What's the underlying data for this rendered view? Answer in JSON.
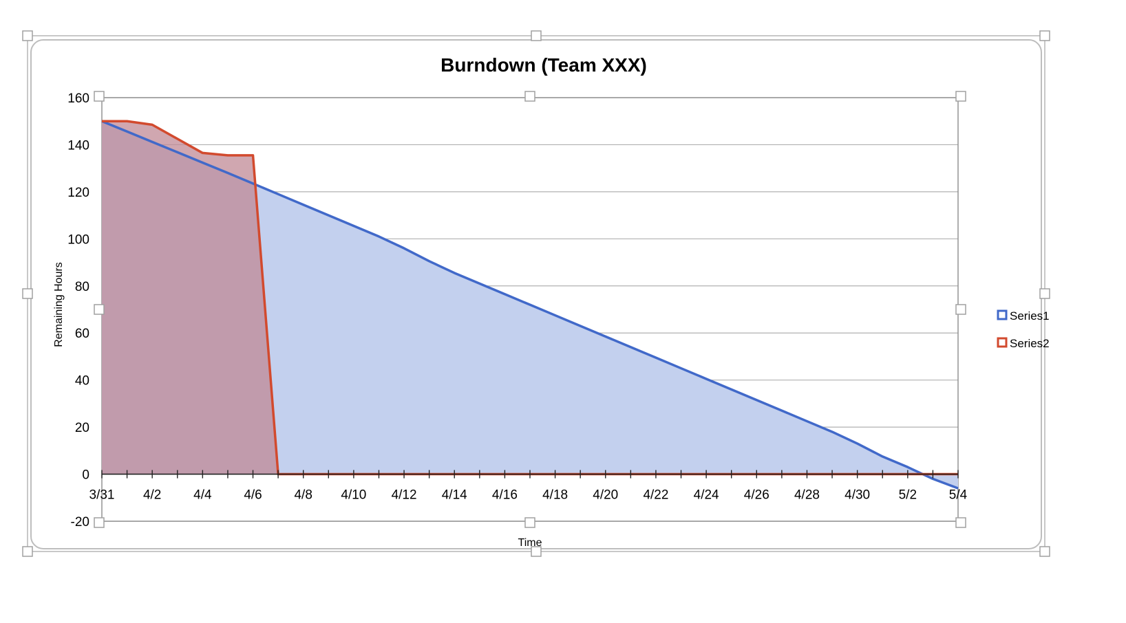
{
  "chart_data": {
    "type": "area",
    "title": "Burndown (Team XXX)",
    "xlabel": "Time",
    "ylabel": "Remaining Hours",
    "ylim": [
      -20,
      160
    ],
    "yticks": [
      -20,
      0,
      20,
      40,
      60,
      80,
      100,
      120,
      140,
      160
    ],
    "x_range": [
      "3/31",
      "5/4"
    ],
    "xtick_labels": [
      "3/31",
      "4/2",
      "4/4",
      "4/6",
      "4/8",
      "4/10",
      "4/12",
      "4/14",
      "4/16",
      "4/18",
      "4/20",
      "4/22",
      "4/24",
      "4/26",
      "4/28",
      "4/30",
      "5/2",
      "5/4"
    ],
    "grid": true,
    "legend_position": "right",
    "series": [
      {
        "name": "Series1",
        "color": "#4169c9",
        "fill": "#c3d0ee",
        "points": [
          {
            "x": "3/31",
            "y": 150
          },
          {
            "x": "4/1",
            "y": 145.6
          },
          {
            "x": "4/2",
            "y": 141.2
          },
          {
            "x": "4/3",
            "y": 136.8
          },
          {
            "x": "4/4",
            "y": 132.4
          },
          {
            "x": "4/5",
            "y": 128
          },
          {
            "x": "4/6",
            "y": 123.5
          },
          {
            "x": "4/7",
            "y": 119
          },
          {
            "x": "4/8",
            "y": 114.5
          },
          {
            "x": "4/9",
            "y": 110
          },
          {
            "x": "4/10",
            "y": 105.5
          },
          {
            "x": "4/11",
            "y": 101
          },
          {
            "x": "4/12",
            "y": 96
          },
          {
            "x": "4/13",
            "y": 90.5
          },
          {
            "x": "4/14",
            "y": 85.5
          },
          {
            "x": "4/15",
            "y": 81
          },
          {
            "x": "4/16",
            "y": 76.5
          },
          {
            "x": "4/17",
            "y": 72
          },
          {
            "x": "4/18",
            "y": 67.5
          },
          {
            "x": "4/19",
            "y": 63
          },
          {
            "x": "4/20",
            "y": 58.5
          },
          {
            "x": "4/21",
            "y": 54
          },
          {
            "x": "4/22",
            "y": 49.5
          },
          {
            "x": "4/23",
            "y": 45
          },
          {
            "x": "4/24",
            "y": 40.5
          },
          {
            "x": "4/25",
            "y": 36
          },
          {
            "x": "4/26",
            "y": 31.5
          },
          {
            "x": "4/27",
            "y": 27
          },
          {
            "x": "4/28",
            "y": 22.5
          },
          {
            "x": "4/29",
            "y": 18
          },
          {
            "x": "4/30",
            "y": 13
          },
          {
            "x": "5/1",
            "y": 7.5
          },
          {
            "x": "5/2",
            "y": 3
          },
          {
            "x": "5/3",
            "y": -2
          },
          {
            "x": "5/4",
            "y": -6
          }
        ]
      },
      {
        "name": "Series2",
        "color": "#d24a2e",
        "fill": "#c08a96",
        "points": [
          {
            "x": "3/31",
            "y": 150
          },
          {
            "x": "4/1",
            "y": 150
          },
          {
            "x": "4/2",
            "y": 148.5
          },
          {
            "x": "4/3",
            "y": 142.5
          },
          {
            "x": "4/4",
            "y": 136.5
          },
          {
            "x": "4/5",
            "y": 135.5
          },
          {
            "x": "4/6",
            "y": 135.5
          },
          {
            "x": "4/7",
            "y": 0
          },
          {
            "x": "4/8",
            "y": 0
          },
          {
            "x": "4/9",
            "y": 0
          },
          {
            "x": "4/10",
            "y": 0
          },
          {
            "x": "4/11",
            "y": 0
          },
          {
            "x": "4/12",
            "y": 0
          },
          {
            "x": "4/13",
            "y": 0
          },
          {
            "x": "4/14",
            "y": 0
          },
          {
            "x": "4/15",
            "y": 0
          },
          {
            "x": "4/16",
            "y": 0
          },
          {
            "x": "4/17",
            "y": 0
          },
          {
            "x": "4/18",
            "y": 0
          },
          {
            "x": "4/19",
            "y": 0
          },
          {
            "x": "4/20",
            "y": 0
          },
          {
            "x": "4/21",
            "y": 0
          },
          {
            "x": "4/22",
            "y": 0
          },
          {
            "x": "4/23",
            "y": 0
          },
          {
            "x": "4/24",
            "y": 0
          },
          {
            "x": "4/25",
            "y": 0
          },
          {
            "x": "4/26",
            "y": 0
          },
          {
            "x": "4/27",
            "y": 0
          },
          {
            "x": "4/28",
            "y": 0
          },
          {
            "x": "4/29",
            "y": 0
          },
          {
            "x": "4/30",
            "y": 0
          },
          {
            "x": "5/1",
            "y": 0
          },
          {
            "x": "5/2",
            "y": 0
          },
          {
            "x": "5/3",
            "y": 0
          },
          {
            "x": "5/4",
            "y": 0
          }
        ]
      }
    ]
  }
}
